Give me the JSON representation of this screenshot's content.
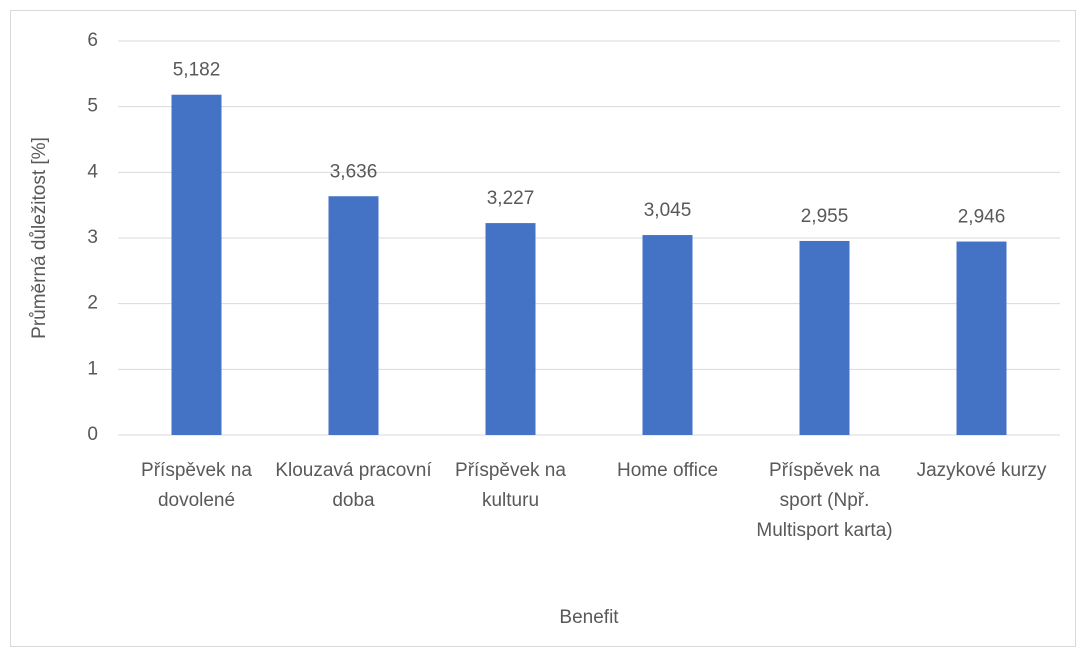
{
  "chart_data": {
    "type": "bar",
    "x_label": "Benefit",
    "y_label": "Průměrná důležitost [%]",
    "categories": [
      "Příspěvek na dovolené",
      "Klouzavá pracovní doba",
      "Příspěvek na kulturu",
      "Home office",
      "Příspěvek na sport (Npř. Multisport karta)",
      "Jazykové kurzy"
    ],
    "values": [
      5.182,
      3.636,
      3.227,
      3.045,
      2.955,
      2.946
    ],
    "value_labels": [
      "5,182",
      "3,636",
      "3,227",
      "3,045",
      "2,955",
      "2,946"
    ],
    "color": "#4472c4",
    "ylim": [
      0,
      6
    ],
    "yticks": [
      0,
      1,
      2,
      3,
      4,
      5,
      6
    ],
    "grid": true
  }
}
